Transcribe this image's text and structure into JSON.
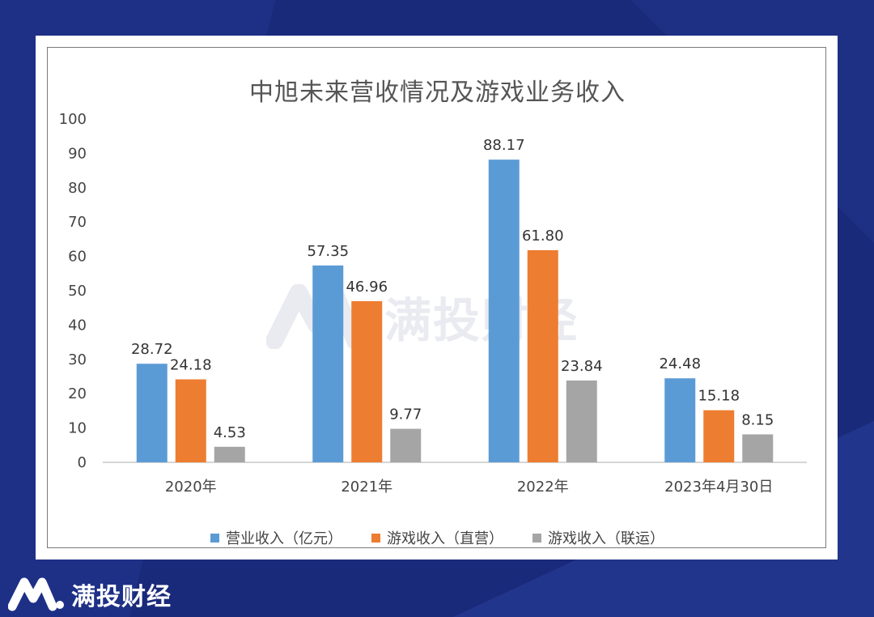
{
  "brand": {
    "name": "满投财经",
    "watermark": "满投财经"
  },
  "colors": {
    "series1": "#5b9bd5",
    "series2": "#ed7d31",
    "series3": "#a5a5a5",
    "background": "#1a2a7a"
  },
  "chart_data": {
    "type": "bar",
    "title": "中旭未来营收情况及游戏业务收入",
    "categories": [
      "2020年",
      "2021年",
      "2022年",
      "2023年4月30日"
    ],
    "series": [
      {
        "name": "营业收入（亿元）",
        "values": [
          28.72,
          57.35,
          88.17,
          24.48
        ],
        "labels": [
          "28.72",
          "57.35",
          "88.17",
          "24.48"
        ]
      },
      {
        "name": "游戏收入（直营）",
        "values": [
          24.18,
          46.96,
          61.8,
          15.18
        ],
        "labels": [
          "24.18",
          "46.96",
          "61.80",
          "15.18"
        ]
      },
      {
        "name": "游戏收入（联运）",
        "values": [
          4.53,
          9.77,
          23.84,
          8.15
        ],
        "labels": [
          "4.53",
          "9.77",
          "23.84",
          "8.15"
        ]
      }
    ],
    "ylim": [
      0,
      100
    ],
    "yticks": [
      "0",
      "10",
      "20",
      "30",
      "40",
      "50",
      "60",
      "70",
      "80",
      "90",
      "100"
    ],
    "xlabel": "",
    "ylabel": "",
    "legend": "bottom"
  }
}
